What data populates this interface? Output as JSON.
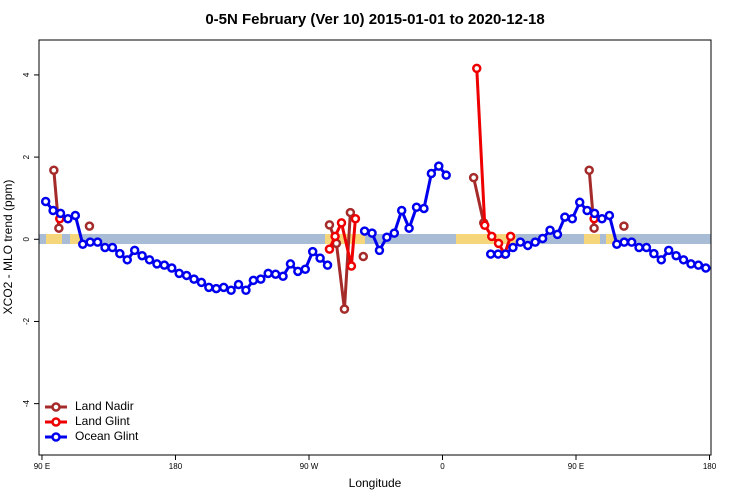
{
  "chart_data": {
    "type": "line",
    "title": "0-5N February (Ver 10)   2015-01-01 to 2020-12-18",
    "xlabel": "Longitude",
    "ylabel": "XCO2 - MLO trend (ppm)",
    "xlim": [
      88,
      541
    ],
    "ylim": [
      -5.25,
      4.85
    ],
    "xticks": [
      {
        "value": 90,
        "label": "90 E"
      },
      180,
      {
        "value": 270,
        "label": "90 W"
      },
      {
        "value": 360,
        "label": "0"
      },
      {
        "value": 450,
        "label": "90 E"
      },
      {
        "value": 540,
        "label": "180"
      }
    ],
    "yticks": [
      -4,
      -2,
      0,
      2,
      4
    ],
    "legend": "bottom-left",
    "series": [
      {
        "name": "Land Nadir",
        "color": "#a52a2a",
        "x": [
          98,
          101.4,
          103,
          122,
          124,
          283.8,
          288.5,
          293.9,
          297.9,
          300,
          306.6,
          308,
          381,
          387.8,
          400,
          458.9,
          462.2,
          470,
          482.3
        ],
        "values": [
          1.68,
          0.27,
          null,
          0.32,
          null,
          0.35,
          -0.1,
          -1.7,
          0.65,
          null,
          -0.42,
          null,
          1.5,
          0.4,
          null,
          1.68,
          0.27,
          null,
          0.32
        ]
      },
      {
        "name": "Land Glint",
        "color": "#ee0000",
        "x": [
          102,
          200,
          283.8,
          287.6,
          291.9,
          298.6,
          301.3,
          340,
          383.1,
          388.5,
          393.2,
          397.8,
          401.9,
          405.9,
          430,
          462.2
        ],
        "values": [
          0.5,
          null,
          -0.24,
          0.07,
          0.4,
          -0.65,
          0.5,
          null,
          4.16,
          0.34,
          0.07,
          -0.1,
          -0.36,
          0.07,
          null,
          0.5
        ]
      },
      {
        "name": "Ocean Glint",
        "color": "#0000ee",
        "x": [
          92.5,
          97.5,
          102.5,
          107.5,
          112.5,
          117.5,
          122.5,
          127.5,
          132.5,
          137.5,
          142.5,
          147.5,
          152.5,
          157.5,
          162.5,
          167.5,
          172.5,
          177.5,
          182.5,
          187.5,
          192.5,
          197.5,
          202.5,
          207.5,
          212.5,
          217.5,
          222.5,
          227.5,
          232.5,
          237.5,
          242.5,
          247.5,
          252.5,
          257.5,
          262.5,
          267.5,
          272.5,
          277.5,
          282.5,
          295,
          307.5,
          312.5,
          317.5,
          322.5,
          327.5,
          332.5,
          337.5,
          342.5,
          347.5,
          352.5,
          357.5,
          362.5,
          380,
          392.5,
          397.5,
          402.5,
          407.5,
          412.5,
          417.5,
          422.5,
          427.5,
          432.5,
          437.5,
          442.5,
          447.5,
          452.5,
          457.5,
          462.5,
          467.5,
          472.5,
          477.5,
          482.5,
          487.5,
          492.5,
          497.5,
          502.5,
          507.5,
          512.5,
          517.5,
          522.5,
          527.5,
          532.5,
          537.5
        ],
        "values": [
          0.92,
          0.7,
          0.63,
          0.5,
          0.58,
          -0.12,
          -0.07,
          -0.07,
          -0.2,
          -0.2,
          -0.35,
          -0.5,
          -0.27,
          -0.4,
          -0.5,
          -0.6,
          -0.63,
          -0.7,
          -0.83,
          -0.88,
          -0.97,
          -1.05,
          -1.17,
          -1.2,
          -1.17,
          -1.24,
          -1.1,
          -1.24,
          -1.0,
          -0.97,
          -0.83,
          -0.85,
          -0.9,
          -0.6,
          -0.78,
          -0.73,
          -0.3,
          -0.46,
          -0.63,
          null,
          0.2,
          0.15,
          -0.27,
          0.05,
          0.15,
          0.7,
          0.27,
          0.78,
          0.75,
          1.6,
          1.78,
          1.56,
          null,
          -0.36,
          -0.36,
          -0.36,
          -0.2,
          -0.07,
          -0.15,
          -0.07,
          0.02,
          0.22,
          0.12,
          0.54,
          0.5,
          0.9,
          0.7,
          0.63,
          0.5,
          0.58,
          -0.12,
          -0.07,
          -0.07,
          -0.2,
          -0.2,
          -0.35,
          -0.5,
          -0.27,
          -0.4,
          -0.5,
          -0.6,
          -0.63,
          -0.7
        ]
      }
    ]
  }
}
